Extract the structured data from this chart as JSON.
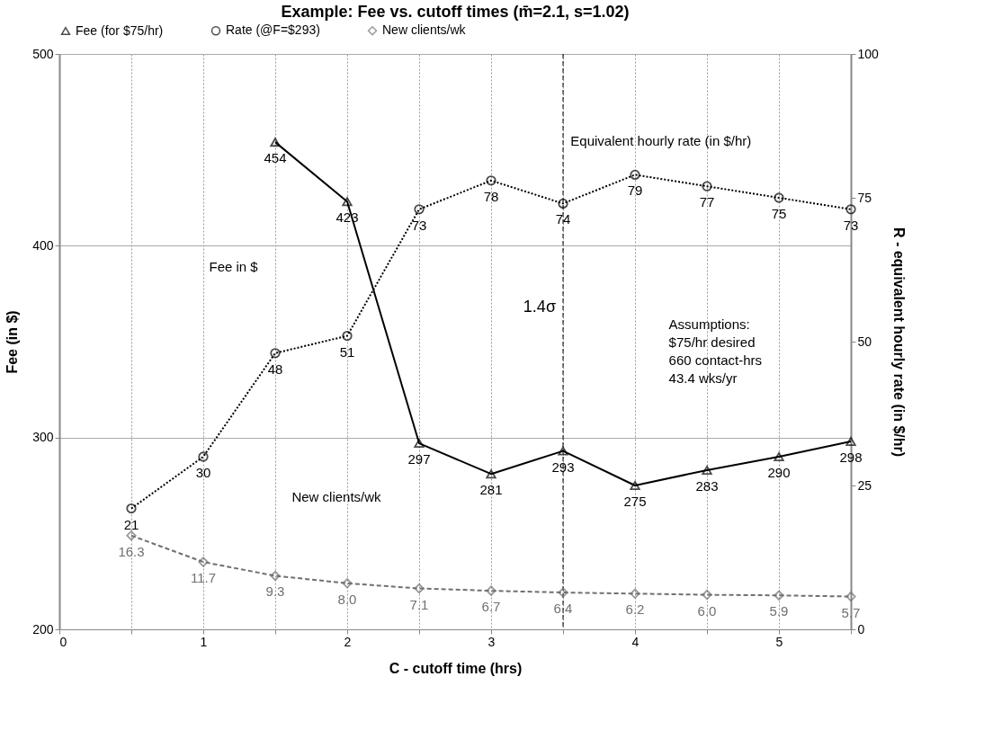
{
  "chart_data": {
    "type": "line",
    "title": "Example: Fee vs. cutoff times (m̄=2.1, s=1.02)",
    "xlabel": "C - cutoff time (hrs)",
    "ylabel": "Fee (in $)",
    "y2label": "R - equivalent hourly rate (in $/hr)",
    "x": [
      0.5,
      1,
      1.5,
      2,
      2.5,
      3,
      3.5,
      4,
      4.5,
      5,
      5.5
    ],
    "series": [
      {
        "name": "Fee (for $75/hr)",
        "color": "#000000",
        "marker": "triangle",
        "line_style": "solid",
        "values": [
          null,
          null,
          454,
          423,
          297,
          281,
          293,
          275,
          283,
          290,
          298
        ]
      },
      {
        "name": "Rate (@F=$293)",
        "color": "#000000",
        "marker": "circle",
        "line_style": "dotted",
        "axis": "y2",
        "values": [
          21,
          30,
          48,
          51,
          73,
          78,
          74,
          79,
          77,
          75,
          73
        ]
      },
      {
        "name": "New clients/wk",
        "color": "#707070",
        "marker": "diamond",
        "line_style": "dashed",
        "axis": "y2",
        "value_labels": [
          "16.3",
          "11.7",
          "9.3",
          "8.0",
          "7.1",
          "6.7",
          "6.4",
          "6.2",
          "6.0",
          "5.9",
          "5.7"
        ],
        "values": [
          16.3,
          11.7,
          9.3,
          8.0,
          7.1,
          6.7,
          6.4,
          6.2,
          6.0,
          5.9,
          5.7
        ]
      }
    ],
    "data_labels": true,
    "xlim": [
      0,
      5.5
    ],
    "xticks": [
      0,
      {
        "value": 0.5,
        "label": null
      },
      1,
      {
        "value": 1.5,
        "label": null
      },
      2,
      {
        "value": 2.5,
        "label": null
      },
      3,
      {
        "value": 3.5,
        "label": null
      },
      4,
      {
        "value": 4.5,
        "label": null
      },
      5,
      {
        "value": 5.5,
        "label": null
      }
    ],
    "ylim": [
      200,
      500
    ],
    "yticks": [
      200,
      300,
      400,
      500
    ],
    "y2lim": [
      0,
      100
    ],
    "y2ticks": [
      0,
      25,
      50,
      75,
      100
    ],
    "grid": true,
    "legend": "top",
    "ref_lines": [
      {
        "axis": "x",
        "value": 3.5,
        "label": "1.4σ",
        "line_style": "dashed",
        "color": "#000000"
      }
    ],
    "annotations": [
      "Equivalent hourly rate (in $/hr)",
      "Fee in $",
      "New clients/wk",
      "Assumptions:\n  $75/hr desired\n  660 contact-hrs\n  43.4 wks/yr"
    ]
  }
}
